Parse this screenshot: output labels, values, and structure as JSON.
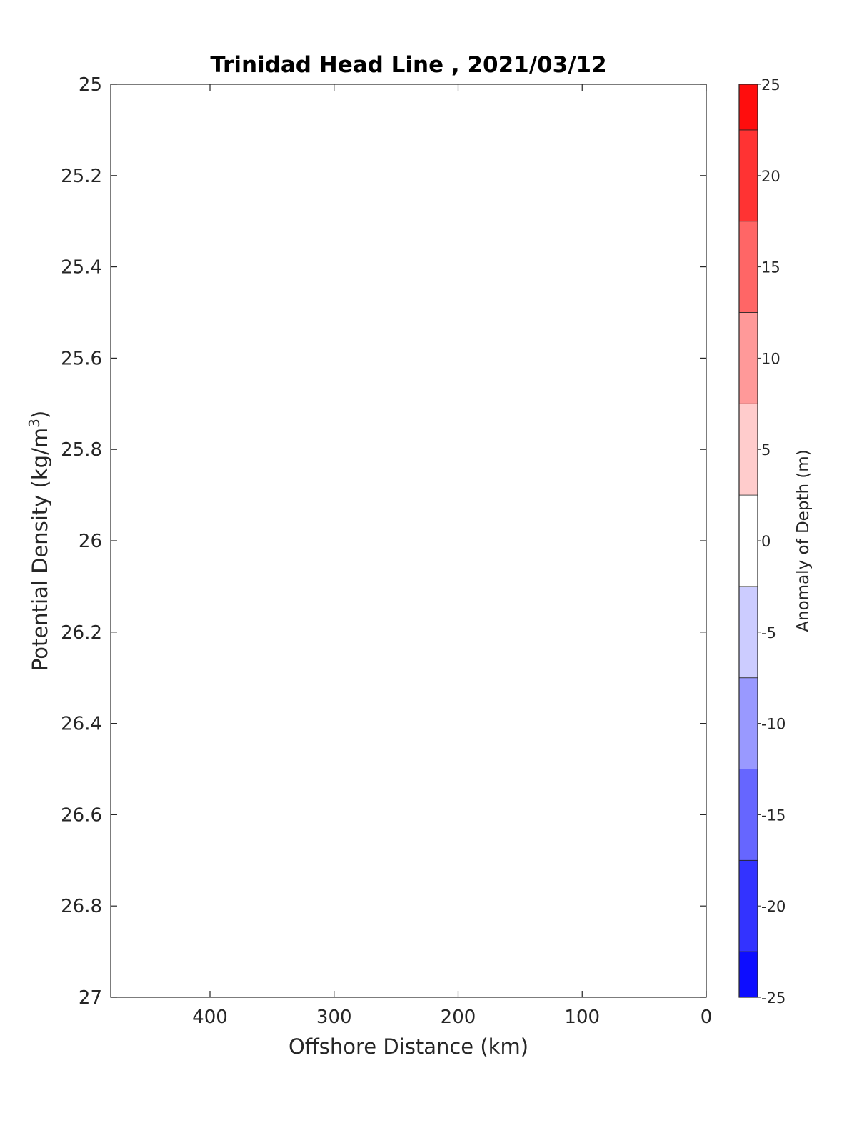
{
  "chart_data": {
    "type": "heatmap",
    "title": "Trinidad Head Line , 2021/03/12",
    "xlabel": "Offshore Distance (km)",
    "ylabel_main": "Potential Density (kg/m",
    "ylabel_sup": "3",
    "ylabel_tail": ")",
    "xlim": [
      480,
      0
    ],
    "x_reversed": true,
    "ylim": [
      25,
      27
    ],
    "y_reversed": true,
    "x_ticks": [
      400,
      300,
      200,
      100,
      0
    ],
    "x_tick_labels": [
      "400",
      "300",
      "200",
      "100",
      "0"
    ],
    "y_ticks": [
      25,
      25.2,
      25.4,
      25.6,
      25.8,
      26,
      26.2,
      26.4,
      26.6,
      26.8,
      27
    ],
    "y_tick_labels": [
      "25",
      "25.2",
      "25.4",
      "25.6",
      "25.8",
      "26",
      "26.2",
      "26.4",
      "26.6",
      "26.8",
      "27"
    ],
    "grid": false,
    "data": [],
    "colorbar": {
      "label": "Anomaly of Depth (m)",
      "clim": [
        -25,
        25
      ],
      "levels": [
        -25,
        -22.5,
        -17.5,
        -12.5,
        -7.5,
        -2.5,
        2.5,
        7.5,
        12.5,
        17.5,
        22.5,
        25
      ],
      "tick_values": [
        -25,
        -20,
        -15,
        -10,
        -5,
        0,
        5,
        10,
        15,
        20,
        25
      ],
      "tick_labels": [
        "-25",
        "-20",
        "-15",
        "-10",
        "-5",
        "0",
        "5",
        "10",
        "15",
        "20",
        "25"
      ],
      "colormap_ends": {
        "negative": "#0000ff",
        "zero": "#ffffff",
        "positive": "#ff0000"
      },
      "band_count": 20
    }
  }
}
